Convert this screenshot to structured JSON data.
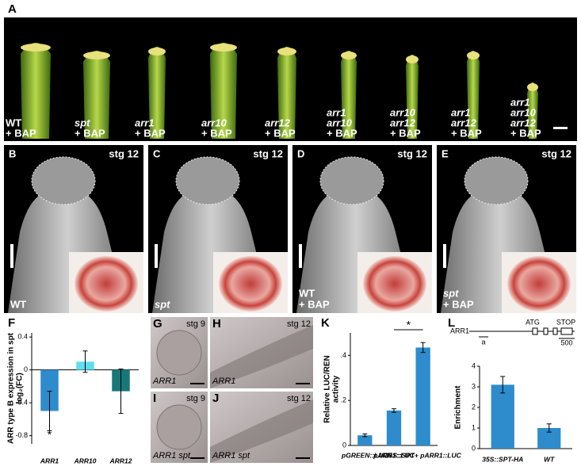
{
  "panel_a": {
    "label": "A",
    "samples": [
      [
        "WT",
        "+ BAP"
      ],
      [
        "spt",
        "+ BAP"
      ],
      [
        "arr1",
        "+ BAP"
      ],
      [
        "arr10",
        "+ BAP"
      ],
      [
        "arr12",
        "+ BAP"
      ],
      [
        "arr1",
        "arr10",
        "+ BAP"
      ],
      [
        "arr10",
        "arr12",
        "+ BAP"
      ],
      [
        "arr1",
        "arr12",
        "+ BAP"
      ],
      [
        "arr1",
        "arr10",
        "arr12",
        "+ BAP"
      ]
    ]
  },
  "sem_panels": [
    {
      "label": "B",
      "stage": "stg 12",
      "genotype": [
        "WT"
      ]
    },
    {
      "label": "C",
      "stage": "stg 12",
      "genotype": [
        "spt"
      ]
    },
    {
      "label": "D",
      "stage": "stg 12",
      "genotype": [
        "WT",
        "+ BAP"
      ]
    },
    {
      "label": "E",
      "stage": "stg 12",
      "genotype": [
        "spt",
        "+ BAP"
      ]
    }
  ],
  "ish_panels": [
    {
      "label": "G",
      "stage": "stg 9",
      "probe": "ARR1"
    },
    {
      "label": "H",
      "stage": "stg 12",
      "probe": "ARR1"
    },
    {
      "label": "I",
      "stage": "stg 9",
      "probe": "ARR1 spt"
    },
    {
      "label": "J",
      "stage": "stg 12",
      "probe": "ARR1 spt"
    }
  ],
  "gene_diagram": {
    "gene": "ARR1",
    "start": "ATG",
    "stop": "STOP",
    "amplicon": "a",
    "scale": "500"
  },
  "chart_data": [
    {
      "type": "bar",
      "panel": "F",
      "ylabel": [
        "ARR type B expression in spt",
        "log₂(FC)"
      ],
      "categories": [
        "ARR1",
        "ARR10",
        "ARR12"
      ],
      "values": [
        -0.5,
        0.1,
        -0.26
      ],
      "errors": [
        0.24,
        0.13,
        0.27
      ],
      "colors": [
        "#2e8ccc",
        "#62dcee",
        "#17787a"
      ],
      "ylim": [
        -0.9,
        0.45
      ],
      "yticks": [
        0.4,
        0,
        -0.4,
        -0.8
      ],
      "significance": {
        "text": "*",
        "categories": [
          0
        ]
      }
    },
    {
      "type": "bar",
      "panel": "K",
      "ylabel": [
        "Relative LUC/REN",
        "activity"
      ],
      "categories": [
        "pGREEN::LUC",
        "pARR1::LUC",
        "35S::SPT+ pARR1::LUC"
      ],
      "values": [
        0.045,
        0.155,
        0.435
      ],
      "errors": [
        0.006,
        0.008,
        0.022
      ],
      "colors": [
        "#2e8ccc",
        "#2e8ccc",
        "#2e8ccc"
      ],
      "ylim": [
        0,
        0.5
      ],
      "yticks": [
        0,
        {
          "value": 0.2,
          "label": ".2"
        },
        {
          "value": 0.4,
          "label": ".4"
        }
      ],
      "significance": {
        "text": "*",
        "categories": [
          1,
          2
        ]
      }
    },
    {
      "type": "bar",
      "panel": "L",
      "ylabel": [
        "Enrichment"
      ],
      "categories": [
        "35S::SPT-HA",
        "WT"
      ],
      "values": [
        3.1,
        1.0
      ],
      "errors": [
        0.4,
        0.2
      ],
      "colors": [
        "#2e8ccc",
        "#2e8ccc"
      ],
      "ylim": [
        0,
        4
      ],
      "yticks": [
        0,
        1,
        2,
        3,
        4
      ]
    }
  ]
}
